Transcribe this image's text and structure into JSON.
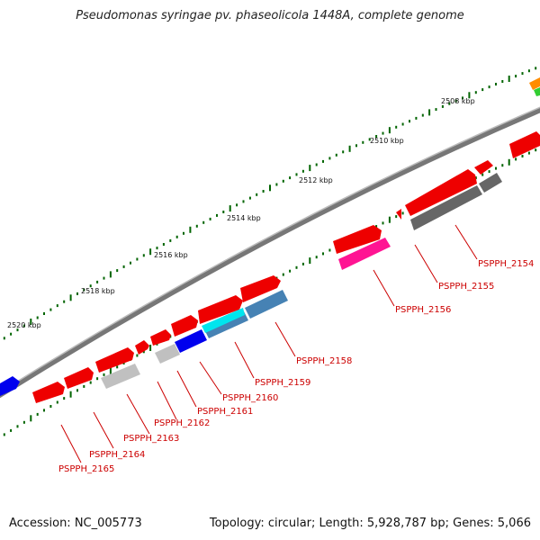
{
  "title": "Pseudomonas syringae pv. phaseolicola 1448A, complete genome",
  "footer": {
    "accession": "Accession: NC_005773",
    "summary": "Topology: circular; Length: 5,928,787 bp; Genes: 5,066"
  },
  "ruler_labels": [
    {
      "text": "2508 kbp"
    },
    {
      "text": "2510 kbp"
    },
    {
      "text": "2512 kbp"
    },
    {
      "text": "2514 kbp"
    },
    {
      "text": "2516 kbp"
    },
    {
      "text": "2518 kbp"
    },
    {
      "text": "2520 kbp"
    }
  ],
  "genes": [
    {
      "label": "PSPPH_2154"
    },
    {
      "label": "PSPPH_2155"
    },
    {
      "label": "PSPPH_2156"
    },
    {
      "label": "PSPPH_2158"
    },
    {
      "label": "PSPPH_2159"
    },
    {
      "label": "PSPPH_2160"
    },
    {
      "label": "PSPPH_2161"
    },
    {
      "label": "PSPPH_2162"
    },
    {
      "label": "PSPPH_2163"
    },
    {
      "label": "PSPPH_2164"
    },
    {
      "label": "PSPPH_2165"
    }
  ],
  "colors": {
    "cds": "#ee0000",
    "label": "#cc0000",
    "tick": "#006400",
    "backbone": "#888888",
    "gray_feature": "#666666",
    "light_gray_feature": "#c0c0c0",
    "pink_feature": "#ff1493",
    "blue_feature": "#0000ee",
    "cyan_feature": "#00e5ee",
    "steel_feature": "#4682b4"
  }
}
